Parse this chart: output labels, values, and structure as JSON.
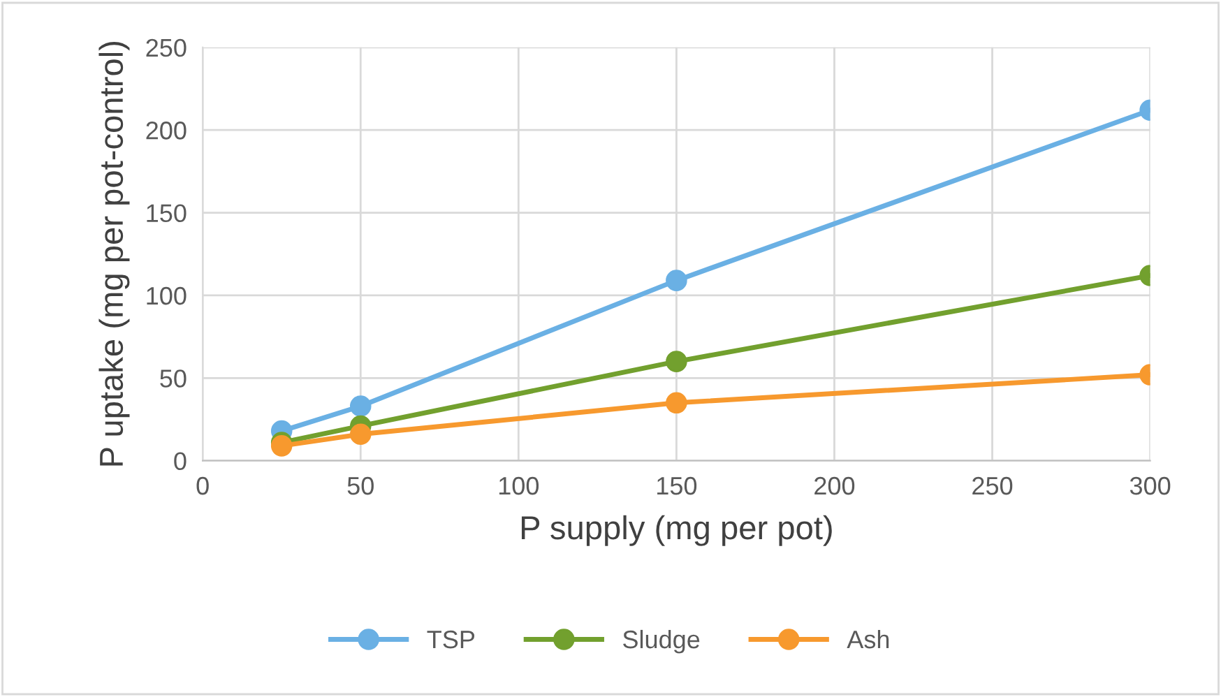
{
  "chart_data": {
    "type": "line",
    "xlabel": "P supply (mg per pot)",
    "ylabel": "P uptake (mg per pot-control)",
    "x": [
      25,
      50,
      150,
      300
    ],
    "series": [
      {
        "name": "TSP",
        "color": "#6ab0e4",
        "values": [
          18,
          33,
          109,
          212
        ]
      },
      {
        "name": "Sludge",
        "color": "#72a02e",
        "values": [
          11,
          21,
          60,
          112
        ]
      },
      {
        "name": "Ash",
        "color": "#f7992e",
        "values": [
          9,
          16,
          35,
          52
        ]
      }
    ],
    "xlim": [
      0,
      300
    ],
    "xticks": [
      0,
      50,
      100,
      150,
      200,
      250,
      300
    ],
    "ylim": [
      0,
      250
    ],
    "yticks": [
      0,
      50,
      100,
      150,
      200,
      250
    ],
    "grid": true,
    "legend": "bottom",
    "marker": "circle",
    "line_style": "solid"
  }
}
